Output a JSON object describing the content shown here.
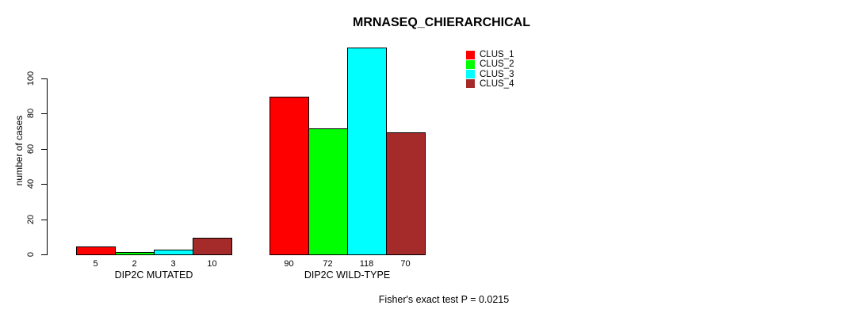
{
  "title": "MRNASEQ_CHIERARCHICAL",
  "footer": "Fisher's exact test P = 0.0215",
  "chart_data": {
    "type": "bar",
    "title": "MRNASEQ_CHIERARCHICAL",
    "xlabel": "",
    "ylabel": "number of cases",
    "ylim": [
      0,
      100
    ],
    "yticks": [
      0,
      20,
      40,
      60,
      80,
      100
    ],
    "grid": false,
    "legend_position": "top-right",
    "categories": [
      "DIP2C MUTATED",
      "DIP2C WILD-TYPE"
    ],
    "series": [
      {
        "name": "CLUS_1",
        "color": "#ff0000",
        "values": [
          5,
          90
        ]
      },
      {
        "name": "CLUS_2",
        "color": "#00ff00",
        "values": [
          2,
          72
        ]
      },
      {
        "name": "CLUS_3",
        "color": "#00ffff",
        "values": [
          3,
          118
        ]
      },
      {
        "name": "CLUS_4",
        "color": "#a52a2a",
        "values": [
          10,
          70
        ]
      }
    ],
    "bar_value_labels_shown": true,
    "annotation": "Fisher's exact test P = 0.0215"
  }
}
